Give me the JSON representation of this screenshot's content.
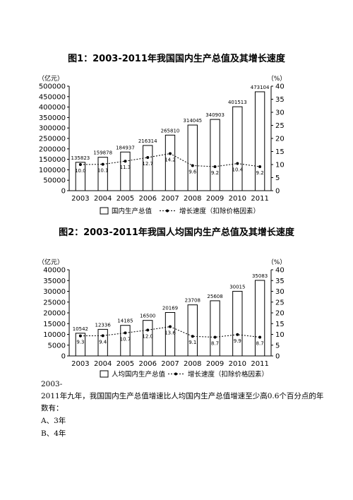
{
  "chart_data": [
    {
      "type": "bar",
      "title": "图1：2003-2011年我国国内生产总值及其增长速度",
      "left_unit": "（亿元）",
      "right_unit": "（%）",
      "categories": [
        "2003",
        "2004",
        "2005",
        "2006",
        "2007",
        "2008",
        "2009",
        "2010",
        "2011"
      ],
      "series": [
        {
          "name": "国内生产总值",
          "type": "bar",
          "axis": "left",
          "values": [
            135823,
            159878,
            184937,
            216314,
            265810,
            314045,
            340903,
            401513,
            473104
          ]
        },
        {
          "name": "增长速度（扣除价格因素）",
          "type": "line",
          "axis": "right",
          "values": [
            10.0,
            10.1,
            11.3,
            12.7,
            14.2,
            9.6,
            9.2,
            10.4,
            9.2
          ]
        }
      ],
      "ylim": [
        0,
        500000
      ],
      "yticks": [
        "0",
        "50000",
        "100000",
        "150000",
        "200000",
        "250000",
        "300000",
        "350000",
        "400000",
        "450000",
        "500000"
      ],
      "y2lim": [
        0,
        40
      ],
      "y2ticks": [
        "0",
        "5",
        "10",
        "15",
        "20",
        "25",
        "30",
        "35",
        "40"
      ],
      "legend": "bottom"
    },
    {
      "type": "bar",
      "title": "图2：2003-2011年我国人均国内生产总值及其增长速度",
      "left_unit": "（亿元）",
      "right_unit": "（%）",
      "categories": [
        "2003",
        "2004",
        "2005",
        "2006",
        "2007",
        "2008",
        "2009",
        "2010",
        "2011"
      ],
      "series": [
        {
          "name": "人均国内生产总值",
          "type": "bar",
          "axis": "left",
          "values": [
            10542,
            12336,
            14185,
            16500,
            20169,
            23708,
            25608,
            30015,
            35083
          ]
        },
        {
          "name": "增长速度（扣除价格因素）",
          "type": "line",
          "axis": "right",
          "values": [
            9.3,
            9.4,
            10.7,
            12.0,
            13.6,
            9.1,
            8.7,
            9.9,
            8.7
          ]
        }
      ],
      "ylim": [
        0,
        40000
      ],
      "yticks": [
        "0",
        "5000",
        "10000",
        "15000",
        "20000",
        "25000",
        "30000",
        "35000",
        "40000"
      ],
      "y2lim": [
        0,
        40
      ],
      "y2ticks": [
        "0",
        "5",
        "10",
        "15",
        "20",
        "25",
        "30",
        "35",
        "40"
      ],
      "legend": "bottom"
    }
  ],
  "question": {
    "line1": "2003-",
    "line2": "2011年九年，我国国内生产总值增速比人均国内生产总值增速至少高0.6个百分点的年",
    "line3": "数有：",
    "option_a": "A、3年",
    "option_b": "B、4年"
  }
}
